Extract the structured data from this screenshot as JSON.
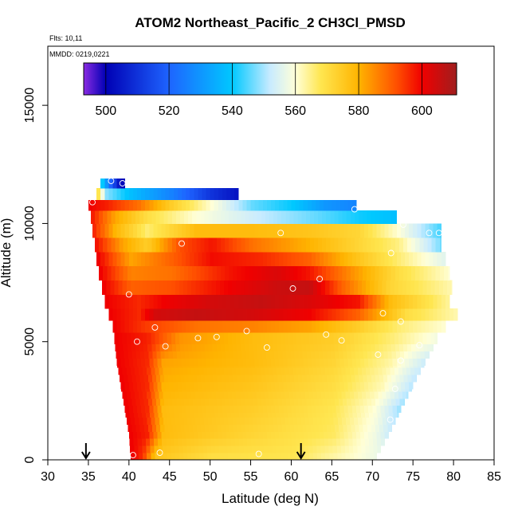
{
  "chart_data": {
    "type": "heatmap",
    "title": "ATOM2 Northeast_Pacific_2 CH3Cl_PMSD",
    "notes": [
      "Flts: 10,11",
      "MMDD: 0219,0221"
    ],
    "xlabel": "Latitude (deg N)",
    "ylabel": "Altitude (m)",
    "xlim": [
      30,
      85
    ],
    "ylim": [
      0,
      17500
    ],
    "x_ticks": [
      30,
      35,
      40,
      45,
      50,
      55,
      60,
      65,
      70,
      75,
      80,
      85
    ],
    "y_ticks": [
      0,
      5000,
      10000,
      15000
    ],
    "grid": false,
    "colorbar": {
      "range": [
        493,
        611
      ],
      "ticks": [
        500,
        520,
        540,
        560,
        580,
        600
      ],
      "placement": "top",
      "stops": [
        {
          "v": 493,
          "c": "#8a2be2"
        },
        {
          "v": 500,
          "c": "#0000b4"
        },
        {
          "v": 520,
          "c": "#1e64ff"
        },
        {
          "v": 540,
          "c": "#00c8ff"
        },
        {
          "v": 552,
          "c": "#c8ebff"
        },
        {
          "v": 560,
          "c": "#ffffd8"
        },
        {
          "v": 568,
          "c": "#ffe650"
        },
        {
          "v": 580,
          "c": "#ffb400"
        },
        {
          "v": 592,
          "c": "#ff5000"
        },
        {
          "v": 600,
          "c": "#f00000"
        },
        {
          "v": 611,
          "c": "#a01e1e"
        }
      ]
    },
    "field": {
      "row_height_m": 300,
      "rows": [
        {
          "y": 0,
          "x0": 40.2,
          "x1": 70.5,
          "prof": [
            [
              40.2,
              600
            ],
            [
              41.5,
              595
            ],
            [
              43,
              576
            ],
            [
              50,
              570
            ],
            [
              60,
              568
            ],
            [
              68,
              560
            ],
            [
              70.5,
              557
            ]
          ]
        },
        {
          "y": 900,
          "x0": 40.0,
          "x1": 72.0,
          "prof": [
            [
              40,
              600
            ],
            [
              42,
              597
            ],
            [
              44,
              578
            ],
            [
              55,
              572
            ],
            [
              65,
              567
            ],
            [
              70,
              558
            ],
            [
              72,
              552
            ]
          ]
        },
        {
          "y": 2000,
          "x0": 39.5,
          "x1": 73.5,
          "prof": [
            [
              39.5,
              600
            ],
            [
              42,
              596
            ],
            [
              44,
              578
            ],
            [
              55,
              574
            ],
            [
              65,
              568
            ],
            [
              70,
              560
            ],
            [
              73.5,
              548
            ]
          ]
        },
        {
          "y": 3000,
          "x0": 39.0,
          "x1": 75.0,
          "prof": [
            [
              39,
              600
            ],
            [
              42,
              596
            ],
            [
              44,
              580
            ],
            [
              55,
              576
            ],
            [
              65,
              570
            ],
            [
              71,
              562
            ],
            [
              75,
              550
            ]
          ]
        },
        {
          "y": 4000,
          "x0": 38.5,
          "x1": 76.5,
          "prof": [
            [
              38.5,
              600
            ],
            [
              42,
              596
            ],
            [
              44,
              582
            ],
            [
              55,
              578
            ],
            [
              65,
              572
            ],
            [
              72,
              563
            ],
            [
              76.5,
              552
            ]
          ]
        },
        {
          "y": 4900,
          "x0": 38.2,
          "x1": 78.0,
          "prof": [
            [
              38.2,
              600
            ],
            [
              42,
              597
            ],
            [
              46,
              584
            ],
            [
              55,
              578
            ],
            [
              65,
              574
            ],
            [
              72,
              566
            ],
            [
              78,
              558
            ]
          ]
        },
        {
          "y": 5400,
          "x0": 38.0,
          "x1": 79.0,
          "prof": [
            [
              38,
              600
            ],
            [
              42,
              594
            ],
            [
              48,
              588
            ],
            [
              55,
              586
            ],
            [
              62,
              582
            ],
            [
              68,
              574
            ],
            [
              73,
              566
            ],
            [
              79,
              560
            ]
          ]
        },
        {
          "y": 5900,
          "x0": 37.5,
          "x1": 80.5,
          "prof": [
            [
              37.5,
              600
            ],
            [
              41,
              596
            ],
            [
              43,
              604
            ],
            [
              48,
              606
            ],
            [
              55,
              604
            ],
            [
              62,
              600
            ],
            [
              68,
              590
            ],
            [
              74,
              570
            ],
            [
              80.5,
              562
            ]
          ]
        },
        {
          "y": 6400,
          "x0": 37.0,
          "x1": 79.5,
          "prof": [
            [
              37,
              600
            ],
            [
              41,
              596
            ],
            [
              44,
              600
            ],
            [
              50,
              604
            ],
            [
              56,
              606
            ],
            [
              62,
              603
            ],
            [
              68,
              598
            ],
            [
              72,
              578
            ],
            [
              79.5,
              563
            ]
          ]
        },
        {
          "y": 7000,
          "x0": 36.7,
          "x1": 79.8,
          "prof": [
            [
              36.7,
              600
            ],
            [
              40,
              590
            ],
            [
              45,
              592
            ],
            [
              52,
              600
            ],
            [
              58,
              605
            ],
            [
              62,
              606
            ],
            [
              66,
              590
            ],
            [
              72,
              572
            ],
            [
              79.8,
              562
            ]
          ]
        },
        {
          "y": 7600,
          "x0": 36.3,
          "x1": 79.5,
          "prof": [
            [
              36.3,
              600
            ],
            [
              40,
              586
            ],
            [
              45,
              588
            ],
            [
              52,
              598
            ],
            [
              58,
              603
            ],
            [
              62,
              598
            ],
            [
              67,
              585
            ],
            [
              73,
              570
            ],
            [
              79.5,
              560
            ]
          ]
        },
        {
          "y": 8200,
          "x0": 36.0,
          "x1": 79.0,
          "prof": [
            [
              36,
              600
            ],
            [
              40,
              582
            ],
            [
              45,
              590
            ],
            [
              50,
              599
            ],
            [
              56,
              596
            ],
            [
              62,
              590
            ],
            [
              67,
              578
            ],
            [
              73,
              566
            ],
            [
              79,
              555
            ]
          ]
        },
        {
          "y": 8800,
          "x0": 35.8,
          "x1": 78.5,
          "prof": [
            [
              35.8,
              598
            ],
            [
              39,
              582
            ],
            [
              42,
              574
            ],
            [
              46,
              592
            ],
            [
              50,
              598
            ],
            [
              55,
              588
            ],
            [
              62,
              580
            ],
            [
              68,
              572
            ],
            [
              73,
              565
            ],
            [
              78.5,
              546
            ]
          ]
        },
        {
          "y": 9400,
          "x0": 35.5,
          "x1": 78.5,
          "prof": [
            [
              35.5,
              596
            ],
            [
              38,
              580
            ],
            [
              42,
              566
            ],
            [
              48,
              578
            ],
            [
              55,
              578
            ],
            [
              62,
              576
            ],
            [
              68,
              572
            ],
            [
              73,
              560
            ],
            [
              78.5,
              543
            ]
          ]
        },
        {
          "y": 10000,
          "x0": 35.3,
          "x1": 73.0,
          "prof": [
            [
              35.3,
              597
            ],
            [
              38,
              582
            ],
            [
              42,
              570
            ],
            [
              48,
              560
            ],
            [
              56,
              552
            ],
            [
              64,
              545
            ],
            [
              68,
              541
            ],
            [
              73,
              538
            ]
          ]
        },
        {
          "y": 10550,
          "x0": 35.0,
          "x1": 68.0,
          "prof": [
            [
              35,
              600
            ],
            [
              37,
              597
            ],
            [
              41,
              588
            ],
            [
              45,
              574
            ],
            [
              50,
              560
            ],
            [
              55,
              546
            ],
            [
              60,
              540
            ],
            [
              64,
              530
            ],
            [
              68,
              526
            ]
          ]
        },
        {
          "y": 11000,
          "x0": 36.0,
          "x1": 53.5,
          "prof": [
            [
              36,
              568
            ],
            [
              37,
              548
            ],
            [
              40,
              538
            ],
            [
              45,
              526
            ],
            [
              50,
              510
            ],
            [
              53.5,
              503
            ]
          ]
        },
        {
          "y": 11500,
          "x0": 36.5,
          "x1": 39.5,
          "prof": [
            [
              36.5,
              540
            ],
            [
              37.5,
              520
            ],
            [
              38.5,
              505
            ],
            [
              39.5,
              498
            ]
          ]
        }
      ]
    },
    "points": [
      [
        40.5,
        200
      ],
      [
        43.8,
        300
      ],
      [
        56,
        250
      ],
      [
        72.2,
        1700
      ],
      [
        72.8,
        3000
      ],
      [
        73.5,
        4200
      ],
      [
        41,
        5000
      ],
      [
        44.5,
        4800
      ],
      [
        48.5,
        5150
      ],
      [
        50.8,
        5200
      ],
      [
        54.5,
        5450
      ],
      [
        57,
        4750
      ],
      [
        64.3,
        5300
      ],
      [
        66.2,
        5050
      ],
      [
        70.7,
        4450
      ],
      [
        75.8,
        4850
      ],
      [
        73.5,
        5850
      ],
      [
        71.3,
        6200
      ],
      [
        43.2,
        5600
      ],
      [
        40,
        7000
      ],
      [
        60.2,
        7250
      ],
      [
        63.5,
        7650
      ],
      [
        46.5,
        9150
      ],
      [
        58.7,
        9600
      ],
      [
        72.3,
        8750
      ],
      [
        77,
        9600
      ],
      [
        78.2,
        9600
      ],
      [
        73.8,
        9950
      ],
      [
        67.8,
        10600
      ],
      [
        35.5,
        10900
      ],
      [
        37.8,
        11800
      ],
      [
        39.2,
        11700
      ]
    ],
    "arrows_at_latitude": [
      34.7,
      61.2
    ]
  }
}
